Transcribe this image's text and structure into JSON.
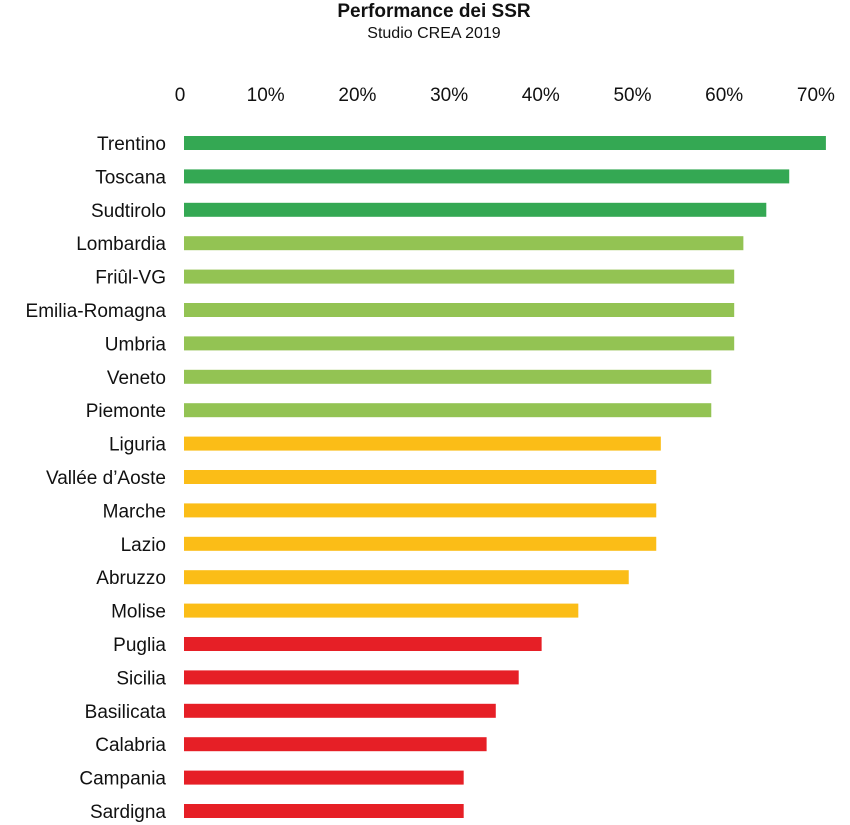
{
  "chart_data": {
    "type": "bar",
    "orientation": "horizontal",
    "title": "Performance dei SSR",
    "subtitle": "Studio CREA 2019",
    "xlabel": "",
    "ylabel": "",
    "xlim": [
      0,
      70
    ],
    "tick_labels": [
      "0",
      "10%",
      "20%",
      "30%",
      "40%",
      "50%",
      "60%",
      "70%"
    ],
    "tick_values": [
      0,
      10,
      20,
      30,
      40,
      50,
      60,
      70
    ],
    "grid": false,
    "legend": "none",
    "categories": [
      "Trentino",
      "Toscana",
      "Sudtirolo",
      "Lombardia",
      "Friûl-VG",
      "Emilia-Romagna",
      "Umbria",
      "Veneto",
      "Piemonte",
      "Liguria",
      "Vallée d’Aoste",
      "Marche",
      "Lazio",
      "Abruzzo",
      "Molise",
      "Puglia",
      "Sicilia",
      "Basilicata",
      "Calabria",
      "Campania",
      "Sardigna"
    ],
    "values": [
      70,
      66,
      63.5,
      61,
      60,
      60,
      60,
      57.5,
      57.5,
      52,
      51.5,
      51.5,
      51.5,
      48.5,
      43,
      39,
      36.5,
      34,
      33,
      30.5,
      30.5
    ],
    "bar_colors": [
      "#34a853",
      "#34a853",
      "#34a853",
      "#93c353",
      "#93c353",
      "#93c353",
      "#93c353",
      "#93c353",
      "#93c353",
      "#fbbd17",
      "#fbbd17",
      "#fbbd17",
      "#fbbd17",
      "#fbbd17",
      "#fbbd17",
      "#e61f26",
      "#e61f26",
      "#e61f26",
      "#e61f26",
      "#e61f26",
      "#e61f26"
    ]
  }
}
